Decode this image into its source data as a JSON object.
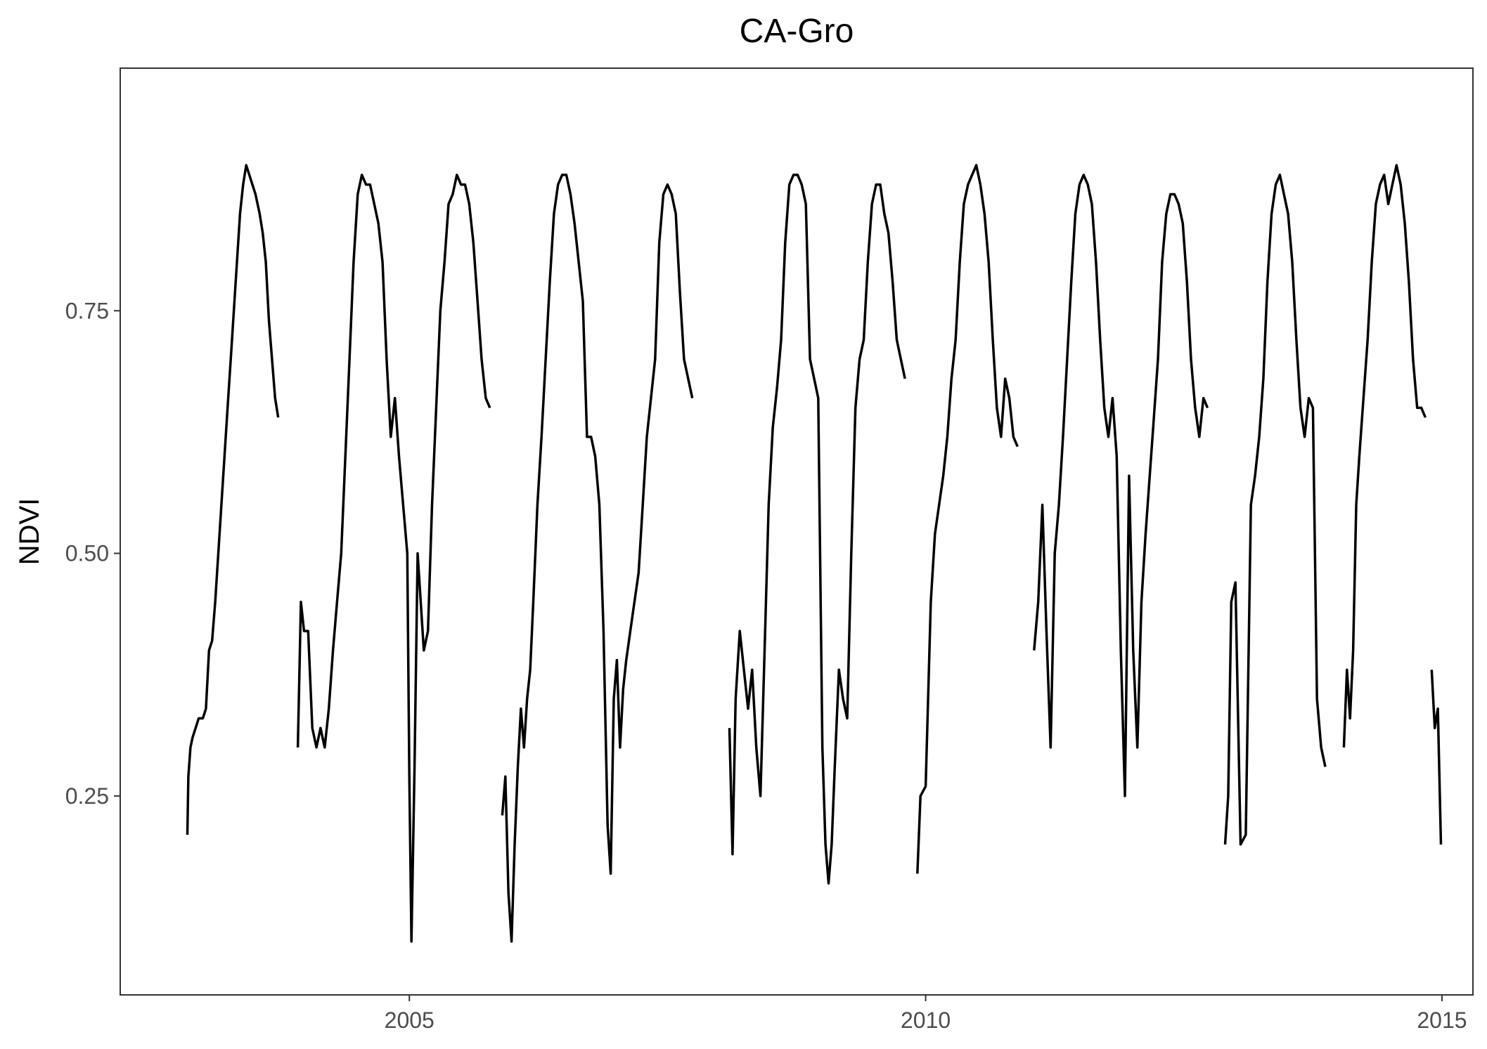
{
  "chart_data": {
    "type": "line",
    "title": "CA-Gro",
    "xlabel": "",
    "ylabel": "NDVI",
    "x_unit": "year",
    "xlim": [
      2002.2,
      2015.3
    ],
    "ylim": [
      0.045,
      1.0
    ],
    "xticks": [
      2005,
      2010,
      2015
    ],
    "xtick_labels": [
      "2005",
      "2010",
      "2015"
    ],
    "yticks": [
      0.25,
      0.5,
      0.75
    ],
    "ytick_labels": [
      "0.25",
      "0.50",
      "0.75"
    ],
    "grid": false,
    "legend": "none",
    "line_color": "#000000",
    "series": [
      {
        "values": [
          [
            2002.85,
            0.21
          ],
          [
            2002.86,
            0.27
          ],
          [
            2002.88,
            0.3
          ],
          [
            2002.9,
            0.31
          ],
          [
            2002.93,
            0.32
          ],
          [
            2002.96,
            0.33
          ],
          [
            2003.0,
            0.33
          ],
          [
            2003.03,
            0.34
          ],
          [
            2003.06,
            0.4
          ],
          [
            2003.09,
            0.41
          ],
          [
            2003.12,
            0.45
          ],
          [
            2003.15,
            0.5
          ],
          [
            2003.18,
            0.55
          ],
          [
            2003.21,
            0.6
          ],
          [
            2003.24,
            0.65
          ],
          [
            2003.27,
            0.7
          ],
          [
            2003.3,
            0.75
          ],
          [
            2003.33,
            0.8
          ],
          [
            2003.36,
            0.85
          ],
          [
            2003.39,
            0.88
          ],
          [
            2003.42,
            0.9
          ],
          [
            2003.45,
            0.89
          ],
          [
            2003.48,
            0.88
          ],
          [
            2003.51,
            0.87
          ],
          [
            2003.55,
            0.85
          ],
          [
            2003.58,
            0.83
          ],
          [
            2003.61,
            0.8
          ],
          [
            2003.64,
            0.74
          ],
          [
            2003.67,
            0.7
          ],
          [
            2003.7,
            0.66
          ],
          [
            2003.73,
            0.64
          ]
        ]
      },
      {
        "values": [
          [
            2003.92,
            0.3
          ],
          [
            2003.95,
            0.45
          ],
          [
            2003.98,
            0.42
          ],
          [
            2004.02,
            0.42
          ],
          [
            2004.06,
            0.32
          ],
          [
            2004.1,
            0.3
          ],
          [
            2004.14,
            0.32
          ],
          [
            2004.18,
            0.3
          ],
          [
            2004.22,
            0.34
          ],
          [
            2004.26,
            0.4
          ],
          [
            2004.3,
            0.45
          ],
          [
            2004.34,
            0.5
          ],
          [
            2004.38,
            0.6
          ],
          [
            2004.42,
            0.7
          ],
          [
            2004.46,
            0.8
          ],
          [
            2004.5,
            0.87
          ],
          [
            2004.54,
            0.89
          ],
          [
            2004.58,
            0.88
          ],
          [
            2004.62,
            0.88
          ],
          [
            2004.66,
            0.86
          ],
          [
            2004.7,
            0.84
          ],
          [
            2004.74,
            0.8
          ],
          [
            2004.78,
            0.7
          ],
          [
            2004.82,
            0.62
          ],
          [
            2004.86,
            0.66
          ],
          [
            2004.9,
            0.6
          ],
          [
            2004.94,
            0.55
          ],
          [
            2004.98,
            0.5
          ],
          [
            2005.0,
            0.27
          ],
          [
            2005.02,
            0.1
          ],
          [
            2005.05,
            0.28
          ],
          [
            2005.08,
            0.5
          ],
          [
            2005.11,
            0.45
          ],
          [
            2005.14,
            0.4
          ],
          [
            2005.18,
            0.42
          ],
          [
            2005.22,
            0.55
          ],
          [
            2005.26,
            0.65
          ],
          [
            2005.3,
            0.75
          ],
          [
            2005.34,
            0.8
          ],
          [
            2005.38,
            0.86
          ],
          [
            2005.42,
            0.87
          ],
          [
            2005.46,
            0.89
          ],
          [
            2005.5,
            0.88
          ],
          [
            2005.54,
            0.88
          ],
          [
            2005.58,
            0.86
          ],
          [
            2005.62,
            0.82
          ],
          [
            2005.66,
            0.76
          ],
          [
            2005.7,
            0.7
          ],
          [
            2005.74,
            0.66
          ],
          [
            2005.78,
            0.65
          ]
        ]
      },
      {
        "values": [
          [
            2005.9,
            0.23
          ],
          [
            2005.93,
            0.27
          ],
          [
            2005.96,
            0.15
          ],
          [
            2005.99,
            0.1
          ],
          [
            2006.02,
            0.2
          ],
          [
            2006.05,
            0.28
          ],
          [
            2006.08,
            0.34
          ],
          [
            2006.11,
            0.3
          ],
          [
            2006.14,
            0.35
          ],
          [
            2006.17,
            0.38
          ],
          [
            2006.2,
            0.45
          ],
          [
            2006.24,
            0.55
          ],
          [
            2006.28,
            0.62
          ],
          [
            2006.32,
            0.7
          ],
          [
            2006.36,
            0.78
          ],
          [
            2006.4,
            0.85
          ],
          [
            2006.44,
            0.88
          ],
          [
            2006.48,
            0.89
          ],
          [
            2006.52,
            0.89
          ],
          [
            2006.56,
            0.87
          ],
          [
            2006.6,
            0.84
          ],
          [
            2006.64,
            0.8
          ],
          [
            2006.68,
            0.76
          ],
          [
            2006.72,
            0.62
          ],
          [
            2006.76,
            0.62
          ],
          [
            2006.8,
            0.6
          ],
          [
            2006.84,
            0.55
          ],
          [
            2006.88,
            0.42
          ],
          [
            2006.92,
            0.22
          ],
          [
            2006.95,
            0.17
          ],
          [
            2006.98,
            0.35
          ],
          [
            2007.01,
            0.39
          ],
          [
            2007.04,
            0.3
          ],
          [
            2007.07,
            0.36
          ],
          [
            2007.1,
            0.39
          ],
          [
            2007.14,
            0.42
          ],
          [
            2007.18,
            0.45
          ],
          [
            2007.22,
            0.48
          ],
          [
            2007.26,
            0.55
          ],
          [
            2007.3,
            0.62
          ],
          [
            2007.34,
            0.66
          ],
          [
            2007.38,
            0.7
          ],
          [
            2007.42,
            0.82
          ],
          [
            2007.46,
            0.87
          ],
          [
            2007.5,
            0.88
          ],
          [
            2007.54,
            0.87
          ],
          [
            2007.58,
            0.85
          ],
          [
            2007.62,
            0.77
          ],
          [
            2007.66,
            0.7
          ],
          [
            2007.7,
            0.68
          ],
          [
            2007.74,
            0.66
          ]
        ]
      },
      {
        "values": [
          [
            2008.1,
            0.32
          ],
          [
            2008.13,
            0.19
          ],
          [
            2008.16,
            0.35
          ],
          [
            2008.2,
            0.42
          ],
          [
            2008.24,
            0.38
          ],
          [
            2008.28,
            0.34
          ],
          [
            2008.32,
            0.38
          ],
          [
            2008.36,
            0.3
          ],
          [
            2008.4,
            0.25
          ],
          [
            2008.44,
            0.4
          ],
          [
            2008.48,
            0.55
          ],
          [
            2008.52,
            0.63
          ],
          [
            2008.56,
            0.67
          ],
          [
            2008.6,
            0.72
          ],
          [
            2008.64,
            0.82
          ],
          [
            2008.68,
            0.88
          ],
          [
            2008.72,
            0.89
          ],
          [
            2008.76,
            0.89
          ],
          [
            2008.8,
            0.88
          ],
          [
            2008.84,
            0.86
          ],
          [
            2008.88,
            0.7
          ],
          [
            2008.92,
            0.68
          ],
          [
            2008.96,
            0.66
          ],
          [
            2009.0,
            0.3
          ],
          [
            2009.03,
            0.2
          ],
          [
            2009.06,
            0.16
          ],
          [
            2009.09,
            0.2
          ],
          [
            2009.12,
            0.28
          ],
          [
            2009.16,
            0.38
          ],
          [
            2009.2,
            0.35
          ],
          [
            2009.24,
            0.33
          ],
          [
            2009.28,
            0.5
          ],
          [
            2009.32,
            0.65
          ],
          [
            2009.36,
            0.7
          ],
          [
            2009.4,
            0.72
          ],
          [
            2009.44,
            0.8
          ],
          [
            2009.48,
            0.86
          ],
          [
            2009.52,
            0.88
          ],
          [
            2009.56,
            0.88
          ],
          [
            2009.6,
            0.85
          ],
          [
            2009.64,
            0.83
          ],
          [
            2009.68,
            0.78
          ],
          [
            2009.72,
            0.72
          ],
          [
            2009.76,
            0.7
          ],
          [
            2009.8,
            0.68
          ]
        ]
      },
      {
        "values": [
          [
            2009.92,
            0.17
          ],
          [
            2009.95,
            0.25
          ],
          [
            2010.0,
            0.26
          ],
          [
            2010.05,
            0.45
          ],
          [
            2010.09,
            0.52
          ],
          [
            2010.13,
            0.55
          ],
          [
            2010.17,
            0.58
          ],
          [
            2010.21,
            0.62
          ],
          [
            2010.25,
            0.68
          ],
          [
            2010.29,
            0.72
          ],
          [
            2010.33,
            0.8
          ],
          [
            2010.37,
            0.86
          ],
          [
            2010.41,
            0.88
          ],
          [
            2010.45,
            0.89
          ],
          [
            2010.49,
            0.9
          ],
          [
            2010.53,
            0.88
          ],
          [
            2010.57,
            0.85
          ],
          [
            2010.61,
            0.8
          ],
          [
            2010.65,
            0.72
          ],
          [
            2010.69,
            0.65
          ],
          [
            2010.73,
            0.62
          ],
          [
            2010.77,
            0.68
          ],
          [
            2010.81,
            0.66
          ],
          [
            2010.85,
            0.62
          ],
          [
            2010.89,
            0.61
          ]
        ]
      },
      {
        "values": [
          [
            2011.05,
            0.4
          ],
          [
            2011.09,
            0.45
          ],
          [
            2011.13,
            0.55
          ],
          [
            2011.17,
            0.42
          ],
          [
            2011.21,
            0.3
          ],
          [
            2011.25,
            0.5
          ],
          [
            2011.29,
            0.55
          ],
          [
            2011.33,
            0.62
          ],
          [
            2011.37,
            0.7
          ],
          [
            2011.41,
            0.78
          ],
          [
            2011.45,
            0.85
          ],
          [
            2011.49,
            0.88
          ],
          [
            2011.53,
            0.89
          ],
          [
            2011.57,
            0.88
          ],
          [
            2011.61,
            0.86
          ],
          [
            2011.65,
            0.8
          ],
          [
            2011.69,
            0.72
          ],
          [
            2011.73,
            0.65
          ],
          [
            2011.77,
            0.62
          ],
          [
            2011.81,
            0.66
          ],
          [
            2011.85,
            0.6
          ],
          [
            2011.89,
            0.4
          ],
          [
            2011.93,
            0.25
          ],
          [
            2011.97,
            0.58
          ],
          [
            2012.01,
            0.4
          ],
          [
            2012.05,
            0.3
          ],
          [
            2012.09,
            0.45
          ],
          [
            2012.13,
            0.52
          ],
          [
            2012.17,
            0.58
          ],
          [
            2012.21,
            0.64
          ],
          [
            2012.25,
            0.7
          ],
          [
            2012.29,
            0.8
          ],
          [
            2012.33,
            0.85
          ],
          [
            2012.37,
            0.87
          ],
          [
            2012.41,
            0.87
          ],
          [
            2012.45,
            0.86
          ],
          [
            2012.49,
            0.84
          ],
          [
            2012.53,
            0.78
          ],
          [
            2012.57,
            0.7
          ],
          [
            2012.61,
            0.65
          ],
          [
            2012.65,
            0.62
          ],
          [
            2012.69,
            0.66
          ],
          [
            2012.73,
            0.65
          ]
        ]
      },
      {
        "values": [
          [
            2012.9,
            0.2
          ],
          [
            2012.93,
            0.25
          ],
          [
            2012.96,
            0.45
          ],
          [
            2013.0,
            0.47
          ],
          [
            2013.05,
            0.2
          ],
          [
            2013.1,
            0.21
          ],
          [
            2013.15,
            0.55
          ],
          [
            2013.19,
            0.58
          ],
          [
            2013.23,
            0.62
          ],
          [
            2013.27,
            0.68
          ],
          [
            2013.31,
            0.78
          ],
          [
            2013.35,
            0.85
          ],
          [
            2013.39,
            0.88
          ],
          [
            2013.43,
            0.89
          ],
          [
            2013.47,
            0.87
          ],
          [
            2013.51,
            0.85
          ],
          [
            2013.55,
            0.8
          ],
          [
            2013.59,
            0.72
          ],
          [
            2013.63,
            0.65
          ],
          [
            2013.67,
            0.62
          ],
          [
            2013.71,
            0.66
          ],
          [
            2013.75,
            0.65
          ],
          [
            2013.79,
            0.35
          ],
          [
            2013.83,
            0.3
          ],
          [
            2013.87,
            0.28
          ]
        ]
      },
      {
        "values": [
          [
            2014.05,
            0.3
          ],
          [
            2014.08,
            0.38
          ],
          [
            2014.11,
            0.33
          ],
          [
            2014.14,
            0.4
          ],
          [
            2014.17,
            0.55
          ],
          [
            2014.2,
            0.6
          ],
          [
            2014.24,
            0.66
          ],
          [
            2014.28,
            0.72
          ],
          [
            2014.32,
            0.8
          ],
          [
            2014.36,
            0.86
          ],
          [
            2014.4,
            0.88
          ],
          [
            2014.44,
            0.89
          ],
          [
            2014.48,
            0.86
          ],
          [
            2014.52,
            0.88
          ],
          [
            2014.56,
            0.9
          ],
          [
            2014.6,
            0.88
          ],
          [
            2014.64,
            0.84
          ],
          [
            2014.68,
            0.78
          ],
          [
            2014.72,
            0.7
          ],
          [
            2014.76,
            0.65
          ],
          [
            2014.8,
            0.65
          ],
          [
            2014.84,
            0.64
          ]
        ]
      },
      {
        "values": [
          [
            2014.9,
            0.38
          ],
          [
            2014.93,
            0.32
          ],
          [
            2014.96,
            0.34
          ],
          [
            2014.99,
            0.2
          ]
        ]
      }
    ]
  }
}
